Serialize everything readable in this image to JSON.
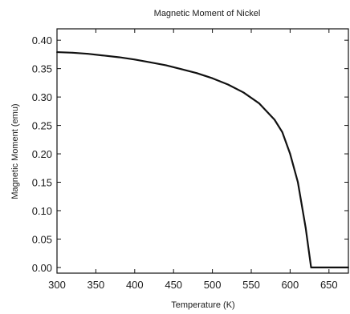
{
  "chart_data": {
    "type": "line",
    "title": "Magnetic Moment of Nickel",
    "xlabel": "Temperature (K)",
    "ylabel": "Magnetic Moment (emu)",
    "xlim": [
      300,
      675
    ],
    "ylim": [
      -0.01,
      0.42
    ],
    "xticks": [
      300,
      350,
      400,
      450,
      500,
      550,
      600,
      650
    ],
    "yticks": [
      0.0,
      0.05,
      0.1,
      0.15,
      0.2,
      0.25,
      0.3,
      0.35,
      0.4
    ],
    "ytick_labels": [
      "0.00",
      "0.05",
      "0.10",
      "0.15",
      "0.20",
      "0.25",
      "0.30",
      "0.35",
      "0.40"
    ],
    "grid": false,
    "legend": "none",
    "series": [
      {
        "color": "#111111",
        "x": [
          300,
          320,
          340,
          360,
          380,
          400,
          420,
          440,
          460,
          480,
          500,
          520,
          540,
          560,
          580,
          590,
          600,
          610,
          615,
          620,
          625,
          627,
          630,
          640,
          660,
          675
        ],
        "y": [
          0.379,
          0.378,
          0.376,
          0.373,
          0.37,
          0.366,
          0.361,
          0.356,
          0.349,
          0.342,
          0.333,
          0.322,
          0.308,
          0.289,
          0.26,
          0.238,
          0.2,
          0.15,
          0.11,
          0.07,
          0.02,
          0.0,
          0.0,
          0.0,
          0.0,
          0.0
        ]
      }
    ]
  }
}
